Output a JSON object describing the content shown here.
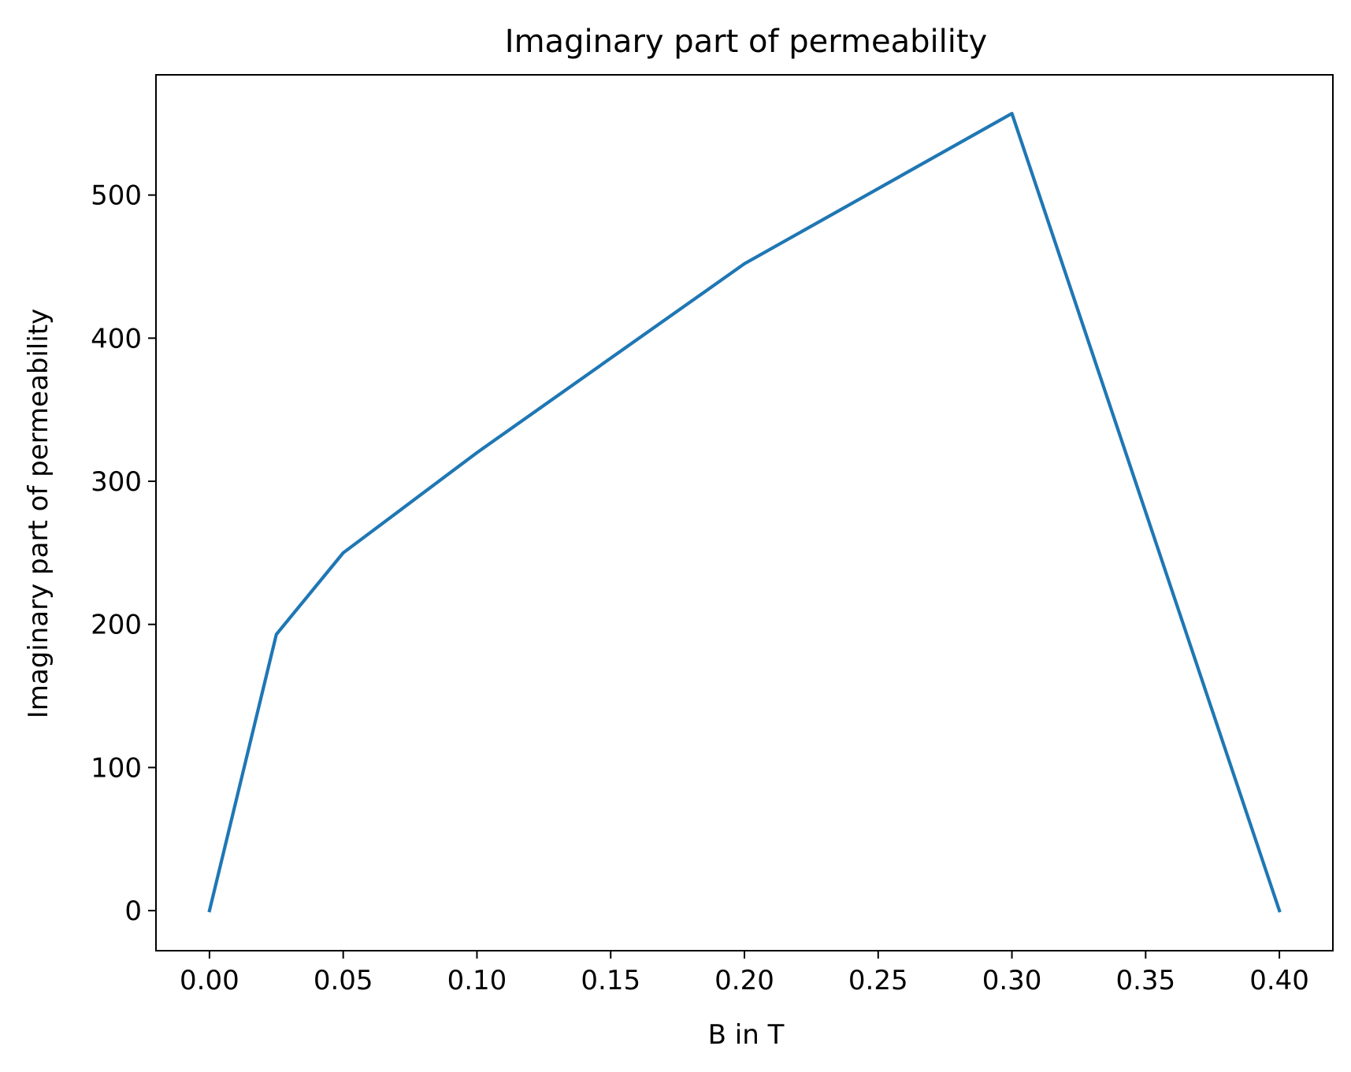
{
  "chart_data": {
    "type": "line",
    "title": "Imaginary part of permeability",
    "xlabel": "B in T",
    "ylabel": "Imaginary part of permeability",
    "xlim": [
      -0.02,
      0.42
    ],
    "ylim": [
      -28,
      584
    ],
    "xticks": [
      0.0,
      0.05,
      0.1,
      0.15,
      0.2,
      0.25,
      0.3,
      0.35,
      0.4
    ],
    "xtick_labels": [
      "0.00",
      "0.05",
      "0.10",
      "0.15",
      "0.20",
      "0.25",
      "0.30",
      "0.35",
      "0.40"
    ],
    "yticks": [
      0,
      100,
      200,
      300,
      400,
      500
    ],
    "ytick_labels": [
      "0",
      "100",
      "200",
      "300",
      "400",
      "500"
    ],
    "grid": false,
    "series": [
      {
        "color": "#1f77b4",
        "x": [
          0.0,
          0.025,
          0.05,
          0.1,
          0.2,
          0.3,
          0.4
        ],
        "y": [
          0,
          193,
          250,
          320,
          452,
          557,
          0
        ]
      }
    ]
  }
}
